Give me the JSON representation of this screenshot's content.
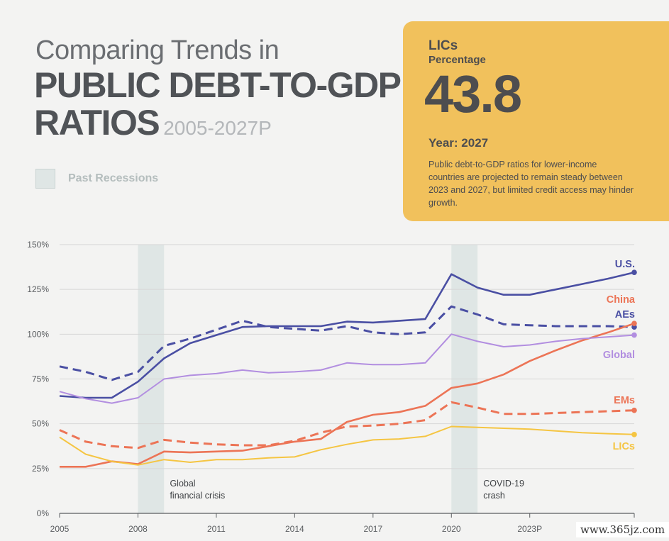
{
  "header": {
    "title_line1": "Comparing Trends in",
    "title_line2": "PUBLIC DEBT-TO-GDP",
    "title_line3": "RATIOS",
    "years": "2005-2027P"
  },
  "legend": {
    "recession_label": "Past Recessions",
    "recession_color": "#dfe6e5"
  },
  "card": {
    "title": "LICs",
    "subtitle": "Percentage",
    "value": "43.8",
    "year": "Year: 2027",
    "description": "Public debt-to-GDP ratios for lower-income countries are projected to remain steady between 2023 and 2027, but limited credit access may hinder growth.",
    "color": "#f1c15c"
  },
  "watermark": "www.365jz.com",
  "chart_data": {
    "type": "line",
    "x": [
      2005,
      2006,
      2007,
      2008,
      2009,
      2010,
      2011,
      2012,
      2013,
      2014,
      2015,
      2016,
      2017,
      2018,
      2019,
      2020,
      2021,
      2022,
      2023,
      2024,
      2025,
      2026,
      2027
    ],
    "xlim": [
      2005,
      2027
    ],
    "ylim": [
      0,
      150
    ],
    "x_ticks": [
      {
        "value": 2005,
        "label": "2005"
      },
      {
        "value": 2008,
        "label": "2008"
      },
      {
        "value": 2011,
        "label": "2011"
      },
      {
        "value": 2014,
        "label": "2014"
      },
      {
        "value": 2017,
        "label": "2017"
      },
      {
        "value": 2020,
        "label": "2020"
      },
      {
        "value": 2023,
        "label": "2023P"
      },
      {
        "value": 2027,
        "label": "2027P"
      }
    ],
    "y_ticks": [
      {
        "value": 0,
        "label": "0%"
      },
      {
        "value": 25,
        "label": "25%"
      },
      {
        "value": 50,
        "label": "50%"
      },
      {
        "value": 75,
        "label": "75%"
      },
      {
        "value": 100,
        "label": "100%"
      },
      {
        "value": 125,
        "label": "125%"
      },
      {
        "value": 150,
        "label": "150%"
      }
    ],
    "grid": "horizontal",
    "recessions": [
      {
        "start": 2008,
        "end": 2009,
        "label_lines": [
          "Global",
          "financial crisis"
        ]
      },
      {
        "start": 2020,
        "end": 2021,
        "label_lines": [
          "COVID-19",
          "crash"
        ]
      }
    ],
    "series": [
      {
        "name": "U.S.",
        "color": "#4a4fa3",
        "dashed": false,
        "values": [
          65.5,
          64.5,
          64.5,
          73.5,
          86.5,
          95,
          99.5,
          104,
          104.5,
          104.5,
          104.5,
          107,
          106.5,
          107.5,
          108.5,
          133.5,
          126,
          122,
          122,
          125,
          128,
          131,
          134.5
        ]
      },
      {
        "name": "AEs",
        "color": "#4a4fa3",
        "dashed": true,
        "values": [
          82,
          79,
          74.5,
          79,
          93.5,
          97.5,
          102.5,
          107.5,
          104,
          103,
          102,
          104.5,
          101,
          100,
          101,
          115.5,
          111,
          105.5,
          105,
          104.5,
          104.5,
          104.5,
          104
        ]
      },
      {
        "name": "China",
        "color": "#ec7456",
        "dashed": false,
        "values": [
          26,
          26,
          29,
          27.5,
          34.5,
          34,
          34.5,
          35,
          37.5,
          40,
          41.5,
          51,
          55,
          56.5,
          60,
          70,
          72.5,
          77.5,
          85,
          91,
          96.5,
          101,
          106
        ]
      },
      {
        "name": "Global",
        "color": "#b28ee0",
        "dashed": false,
        "values": [
          68,
          64,
          61.5,
          64.5,
          75,
          77,
          78,
          80,
          78.5,
          79,
          80,
          84,
          83,
          83,
          84,
          100,
          96,
          93,
          94,
          96,
          97.5,
          98.5,
          99.5
        ]
      },
      {
        "name": "EMs",
        "color": "#ec7456",
        "dashed": true,
        "values": [
          46.5,
          40,
          37.5,
          36.5,
          41,
          39.5,
          38.5,
          38,
          38,
          40.5,
          45,
          48.5,
          49,
          50,
          52,
          62,
          59,
          55.5,
          55.5,
          56,
          56.5,
          57,
          57.5
        ]
      },
      {
        "name": "LICs",
        "color": "#f5c542",
        "dashed": false,
        "values": [
          42.5,
          33,
          29,
          27,
          30,
          28.5,
          30,
          30,
          31,
          31.5,
          35.5,
          38.5,
          41,
          41.5,
          43,
          48.5,
          48,
          47.5,
          47,
          46,
          45,
          44.5,
          44
        ]
      }
    ]
  }
}
